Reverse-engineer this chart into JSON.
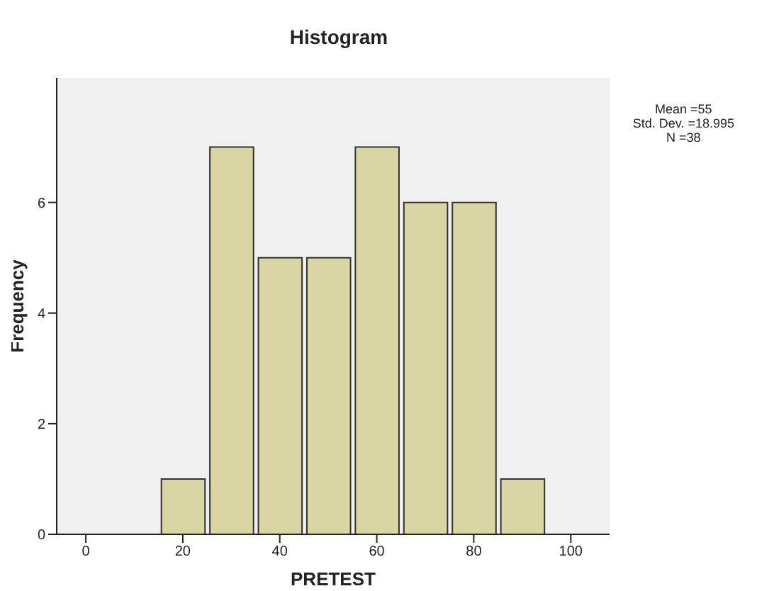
{
  "chart_data": {
    "type": "histogram",
    "title": "Histogram",
    "xlabel": "PRETEST",
    "ylabel": "Frequency",
    "bins": [
      15,
      25,
      35,
      45,
      55,
      65,
      75,
      85,
      95
    ],
    "values": [
      1,
      7,
      5,
      5,
      7,
      6,
      6,
      1
    ],
    "color": "#d9d5a5",
    "xlim": [
      -6,
      108
    ],
    "xticks": [
      0,
      20,
      40,
      60,
      80,
      100
    ],
    "ylim": [
      0,
      8.25
    ],
    "yticks": [
      0,
      2,
      4,
      6
    ],
    "grid": false,
    "annotations": [
      "Mean =55",
      "Std. Dev. =18.995",
      "N =38"
    ]
  }
}
